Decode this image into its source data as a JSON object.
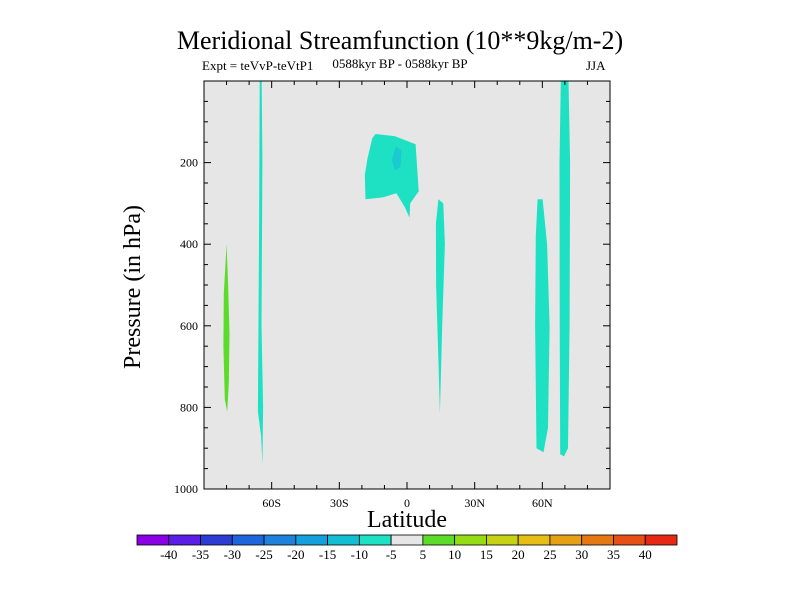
{
  "chart_data": {
    "type": "contour",
    "title": "Meridional Streamfunction (10**9kg/m-2)",
    "subtitle_left": "Expt = teVvP-teVtP1",
    "subtitle_center": "0588kyr BP - 0588kyr BP",
    "subtitle_right": "JJA",
    "xlabel": "Latitude",
    "ylabel": "Pressure (in hPa)",
    "xlim": [
      -90,
      90
    ],
    "ylim": [
      1000,
      0
    ],
    "xticks": [
      {
        "value": -60,
        "label": "60S"
      },
      {
        "value": -30,
        "label": "30S"
      },
      {
        "value": 0,
        "label": "0"
      },
      {
        "value": 30,
        "label": "30N"
      },
      {
        "value": 60,
        "label": "60N"
      }
    ],
    "yticks": [
      {
        "value": 200,
        "label": "200"
      },
      {
        "value": 400,
        "label": "400"
      },
      {
        "value": 600,
        "label": "600"
      },
      {
        "value": 800,
        "label": "800"
      },
      {
        "value": 1000,
        "label": "1000"
      }
    ],
    "background_color": "#e6e6e6",
    "colorbar": {
      "labels": [
        "-40",
        "-35",
        "-30",
        "-25",
        "-20",
        "-15",
        "-10",
        "-5",
        "5",
        "10",
        "15",
        "20",
        "25",
        "30",
        "35",
        "40"
      ],
      "colors": [
        "#8c00e6",
        "#5a1ee6",
        "#2d3cd2",
        "#1e64dc",
        "#1e82dc",
        "#14a0dc",
        "#14bed2",
        "#1ee1c3",
        "#e6e6e6",
        "#5adc28",
        "#96dc14",
        "#c8d214",
        "#e6be14",
        "#e6a014",
        "#e67814",
        "#e65014",
        "#e62814"
      ]
    },
    "regions": [
      {
        "name": "sh-polar-positive",
        "level": "5 to 10",
        "color": "#5adc28",
        "points": [
          [
            -80,
            400
          ],
          [
            -79.3,
            500
          ],
          [
            -78.7,
            620
          ],
          [
            -79,
            740
          ],
          [
            -79.7,
            810
          ],
          [
            -80.8,
            780
          ],
          [
            -81.4,
            650
          ],
          [
            -81.2,
            520
          ]
        ]
      },
      {
        "name": "sh-60s-column",
        "level": "-10 to -5",
        "color": "#1ee1c3",
        "points": [
          [
            -65.3,
            0
          ],
          [
            -64.4,
            0
          ],
          [
            -64.1,
            200
          ],
          [
            -64.5,
            600
          ],
          [
            -63.8,
            800
          ],
          [
            -64.1,
            940
          ],
          [
            -64.7,
            870
          ],
          [
            -66.1,
            810
          ],
          [
            -65.6,
            400
          ]
        ]
      },
      {
        "name": "tropical-upper-cell",
        "level": "-10 to -5",
        "color": "#1ee1c3",
        "points": [
          [
            -13.9,
            130
          ],
          [
            -5.5,
            135
          ],
          [
            3.8,
            155
          ],
          [
            5.2,
            270
          ],
          [
            1.4,
            300
          ],
          [
            1.1,
            335
          ],
          [
            -0.9,
            310
          ],
          [
            -4.7,
            275
          ],
          [
            -10.5,
            285
          ],
          [
            -18.4,
            290
          ],
          [
            -18.7,
            230
          ],
          [
            -17.5,
            190
          ],
          [
            -15.4,
            140
          ]
        ]
      },
      {
        "name": "tropical-upper-core",
        "level": "-15 to -10",
        "color": "#1bc9d2",
        "points": [
          [
            -5,
            160
          ],
          [
            -2.5,
            170
          ],
          [
            -2.9,
            210
          ],
          [
            -5.2,
            220
          ],
          [
            -6.8,
            195
          ]
        ]
      },
      {
        "name": "nh-15n-column",
        "level": "-10 to -5",
        "color": "#1ee1c3",
        "points": [
          [
            13.9,
            290
          ],
          [
            16.1,
            300
          ],
          [
            16.8,
            400
          ],
          [
            15.6,
            600
          ],
          [
            14.6,
            815
          ],
          [
            14.0,
            700
          ],
          [
            12.9,
            500
          ],
          [
            12.8,
            350
          ]
        ]
      },
      {
        "name": "nh-60n-column",
        "level": "-10 to -5",
        "color": "#1ee1c3",
        "points": [
          [
            57.9,
            290
          ],
          [
            60.1,
            290
          ],
          [
            62.1,
            400
          ],
          [
            63.2,
            600
          ],
          [
            62.5,
            850
          ],
          [
            60.5,
            910
          ],
          [
            57.4,
            900
          ],
          [
            56.8,
            600
          ],
          [
            57.1,
            380
          ]
        ]
      },
      {
        "name": "nh-70n-column",
        "level": "-10 to -5",
        "color": "#1ee1c3",
        "points": [
          [
            68.2,
            0
          ],
          [
            71.6,
            0
          ],
          [
            72.3,
            200
          ],
          [
            72.1,
            600
          ],
          [
            71.4,
            900
          ],
          [
            69.6,
            920
          ],
          [
            67.9,
            915
          ],
          [
            67.7,
            600
          ],
          [
            67.6,
            200
          ]
        ]
      }
    ]
  }
}
